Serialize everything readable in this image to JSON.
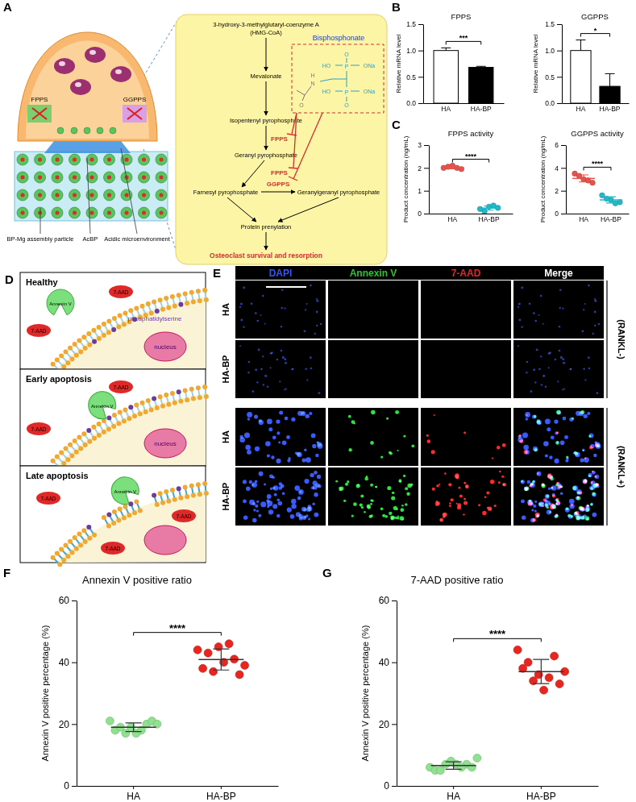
{
  "panel_labels": [
    "A",
    "B",
    "C",
    "D",
    "E",
    "F",
    "G"
  ],
  "diagram_a": {
    "cell_enzymes": [
      "FPPS",
      "GGPPS"
    ],
    "cell_labels": [
      "BP-Mg assembly particle",
      "AcBP",
      "Acidic microenvironment"
    ],
    "pathway": [
      "3-hydroxy-3-methylglutaryl-coenzyme A",
      "(HMG-CoA)",
      "Mevalonate",
      "Isopentenyl pyrophosphate",
      "Geranyl pyrophosphate",
      "Farnesyl pyrophosphate",
      "Geranylgeranyl pyrophosphate",
      "Protein prenylation",
      "Osteoclast survival and resorption"
    ],
    "enzymes": [
      "FPPS",
      "FPPS",
      "GGPPS"
    ],
    "drug": "Bisphosphonate",
    "structure_atoms": [
      "O",
      "HO",
      "P",
      "ONa",
      "HO",
      "P",
      "ONa",
      "O",
      "H",
      "N",
      "O"
    ]
  },
  "diagram_d": {
    "stages": [
      "Healthy",
      "Early apoptosis",
      "Late apoptosis"
    ],
    "annexin": "Annexin V",
    "dye": "7-AAD",
    "lipid": "phosphatidylserine",
    "nucleus": "nucleus"
  },
  "image_grid_e": {
    "columns": [
      "DAPI",
      "Annexin V",
      "7-AAD",
      "Merge"
    ],
    "rows": [
      "HA",
      "HA-BP",
      "HA",
      "HA-BP"
    ],
    "groups": [
      "(RANKL-)",
      "(RANKL+)"
    ]
  },
  "chart_data": [
    {
      "type": "bar",
      "title": "FPPS",
      "y_label": "Relative mRNA level",
      "categories": [
        "HA",
        "HA-BP"
      ],
      "values": [
        1.0,
        0.68
      ],
      "errors": [
        0.05,
        0.02
      ],
      "colors": [
        "#ffffff",
        "#000000"
      ],
      "ylim": [
        0,
        1.5
      ],
      "yticks": [
        {
          "value": 0,
          "label": "0.0"
        },
        0.5,
        {
          "value": 1,
          "label": "1.0"
        },
        1.5
      ],
      "significance": "***"
    },
    {
      "type": "bar",
      "title": "GGPPS",
      "y_label": "Relative mRNA level",
      "categories": [
        "HA",
        "HA-BP"
      ],
      "values": [
        1.0,
        0.32
      ],
      "errors": [
        0.2,
        0.24
      ],
      "colors": [
        "#ffffff",
        "#000000"
      ],
      "ylim": [
        0,
        1.5
      ],
      "yticks": [
        {
          "value": 0,
          "label": "0.0"
        },
        0.5,
        {
          "value": 1,
          "label": "1.0"
        },
        1.5
      ],
      "significance": "*"
    },
    {
      "type": "scatter",
      "title": "FPPS activity",
      "y_label": "Product concentration (ng/mL)",
      "categories": [
        "HA",
        "HA-BP"
      ],
      "values": [
        [
          2.0,
          2.1,
          1.95,
          2.05,
          2.0
        ],
        [
          0.2,
          0.3,
          0.25,
          0.1,
          0.35
        ]
      ],
      "means": [
        2.02,
        0.24
      ],
      "errors": [
        0.06,
        0.09
      ],
      "colors": [
        "#e5534b",
        "#22b8c8"
      ],
      "ylim": [
        0,
        3
      ],
      "yticks": [
        0,
        1,
        2,
        3
      ],
      "significance": "****"
    },
    {
      "type": "scatter",
      "title": "GGPPS activity",
      "y_label": "Product concentration (ng/mL)",
      "categories": [
        "HA",
        "HA-BP"
      ],
      "values": [
        [
          3.5,
          3.0,
          2.7,
          3.3,
          2.9
        ],
        [
          1.6,
          1.2,
          1.0,
          1.3,
          0.9
        ]
      ],
      "means": [
        3.08,
        1.2
      ],
      "errors": [
        0.31,
        0.27
      ],
      "colors": [
        "#e5534b",
        "#22b8c8"
      ],
      "ylim": [
        0,
        6
      ],
      "yticks": [
        0,
        2,
        4,
        6
      ],
      "significance": "****"
    },
    {
      "type": "scatter",
      "title": "Annexin V positive ratio",
      "y_label": "Annexin V positive percentage (%)",
      "categories": [
        "HA",
        "HA-BP"
      ],
      "values": [
        [
          21,
          20,
          19,
          18,
          21,
          17,
          19,
          20,
          18,
          17
        ],
        [
          44,
          41,
          45,
          38,
          36,
          40,
          43,
          39,
          46,
          37
        ]
      ],
      "means": [
        19,
        40.9
      ],
      "errors": [
        1.4,
        3.4
      ],
      "colors": [
        "#8fe08f",
        "#e8251f"
      ],
      "ylim": [
        0,
        60
      ],
      "yticks": [
        0,
        20,
        40,
        60
      ],
      "significance": "****"
    },
    {
      "type": "scatter",
      "title": "7-AAD positive ratio",
      "y_label": "Annexin V positive percentage (%)",
      "categories": [
        "HA",
        "HA-BP"
      ],
      "values": [
        [
          6,
          7,
          8,
          5,
          6,
          7,
          5,
          9,
          6,
          7
        ],
        [
          44,
          42,
          36,
          38,
          33,
          31,
          40,
          37,
          35,
          34
        ]
      ],
      "means": [
        6.6,
        37
      ],
      "errors": [
        1.2,
        3.9
      ],
      "colors": [
        "#8fe08f",
        "#e8251f"
      ],
      "ylim": [
        0,
        60
      ],
      "yticks": [
        0,
        20,
        40,
        60
      ],
      "significance": "****"
    }
  ]
}
